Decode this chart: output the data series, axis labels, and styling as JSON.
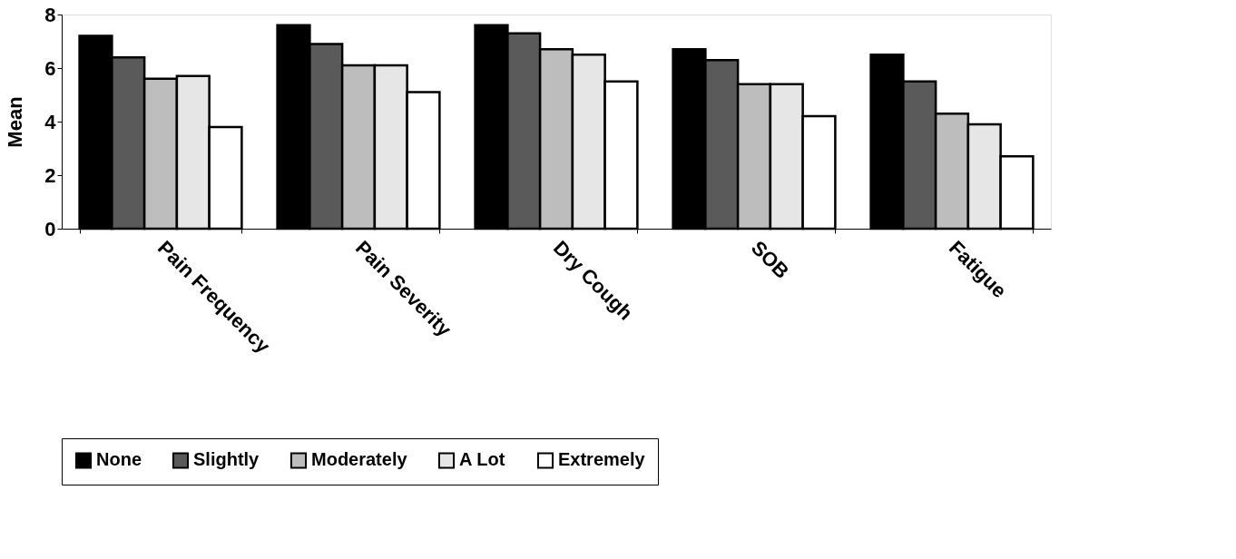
{
  "chart_data": {
    "type": "bar",
    "ylabel": "Mean",
    "categories": [
      "Pain Frequency",
      "Pain Severity",
      "Dry Cough",
      "SOB",
      "Fatigue"
    ],
    "series": [
      {
        "name": "None",
        "color": "#000000",
        "values": [
          7.2,
          7.6,
          7.6,
          6.7,
          6.5
        ]
      },
      {
        "name": "Slightly",
        "color": "#5a5a5a",
        "values": [
          6.4,
          6.9,
          7.3,
          6.3,
          5.5
        ]
      },
      {
        "name": "Moderately",
        "color": "#bdbdbd",
        "values": [
          5.6,
          6.1,
          6.7,
          5.4,
          4.3
        ]
      },
      {
        "name": "A Lot",
        "color": "#e6e6e6",
        "values": [
          5.7,
          6.1,
          6.5,
          5.4,
          3.9
        ]
      },
      {
        "name": "Extremely",
        "color": "#ffffff",
        "values": [
          3.8,
          5.1,
          5.5,
          4.2,
          2.7
        ]
      }
    ],
    "ylim": [
      0,
      8
    ],
    "yticks": [
      0,
      2,
      4,
      6,
      8
    ],
    "grid": false,
    "legend": "bottom"
  }
}
